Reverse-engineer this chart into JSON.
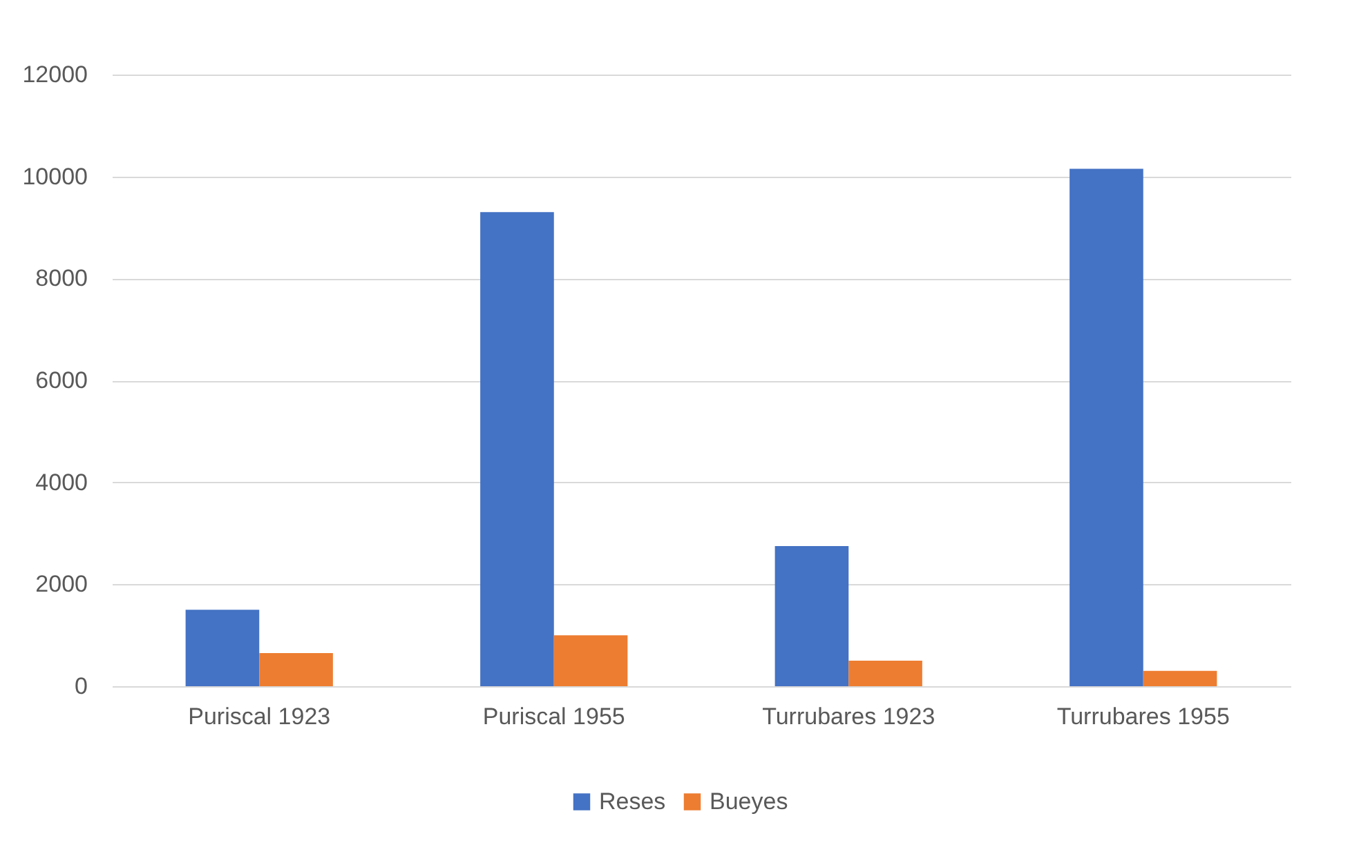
{
  "chart_data": {
    "type": "bar",
    "categories": [
      "Puriscal 1923",
      "Puriscal 1955",
      "Turrubares 1923",
      "Turrubares 1955"
    ],
    "series": [
      {
        "name": "Reses",
        "color": "#4472c4",
        "values": [
          1500,
          9300,
          2750,
          10150
        ]
      },
      {
        "name": "Bueyes",
        "color": "#ed7d31",
        "values": [
          650,
          1000,
          500,
          300
        ]
      }
    ],
    "ylim": [
      0,
      12000
    ],
    "yticks": [
      0,
      2000,
      4000,
      6000,
      8000,
      10000,
      12000
    ],
    "grid": "y",
    "legend": "bottom"
  }
}
